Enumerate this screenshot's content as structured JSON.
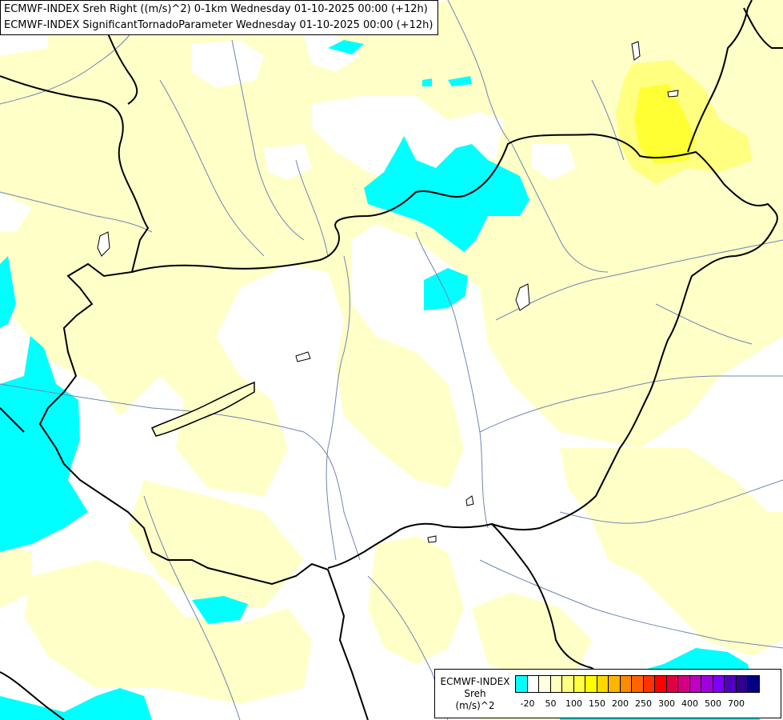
{
  "header": {
    "line1": "ECMWF-INDEX Sreh Right ((m/s)^2) 0-1km Wednesday 01-10-2025 00:00 (+12h)",
    "line2": "ECMWF-INDEX SignificantTornadoParameter Wednesday 01-10-2025 00:00 (+12h)"
  },
  "legend": {
    "title1": "ECMWF-INDEX",
    "title2": "Sreh",
    "title3": "(m/s)^2",
    "colors": [
      "#00ffff",
      "#ffffff",
      "#ffffe0",
      "#ffffc0",
      "#ffff80",
      "#ffff40",
      "#ffff00",
      "#ffd700",
      "#ffb400",
      "#ff8c00",
      "#ff6400",
      "#ff3200",
      "#ff0000",
      "#e00040",
      "#d00080",
      "#c000c0",
      "#a000e0",
      "#8000ff",
      "#5000c0",
      "#300090",
      "#000080"
    ],
    "ticks": [
      "-20",
      "50",
      "100",
      "150",
      "200",
      "250",
      "300",
      "400",
      "500",
      "700"
    ]
  },
  "map": {
    "colors": {
      "white": "#ffffff",
      "pale_yellow": "#ffffc8",
      "yellow_light": "#ffff80",
      "yellow_strong": "#ffff33",
      "cyan": "#00ffff",
      "border": "#000000",
      "river": "#6f86b0"
    }
  }
}
